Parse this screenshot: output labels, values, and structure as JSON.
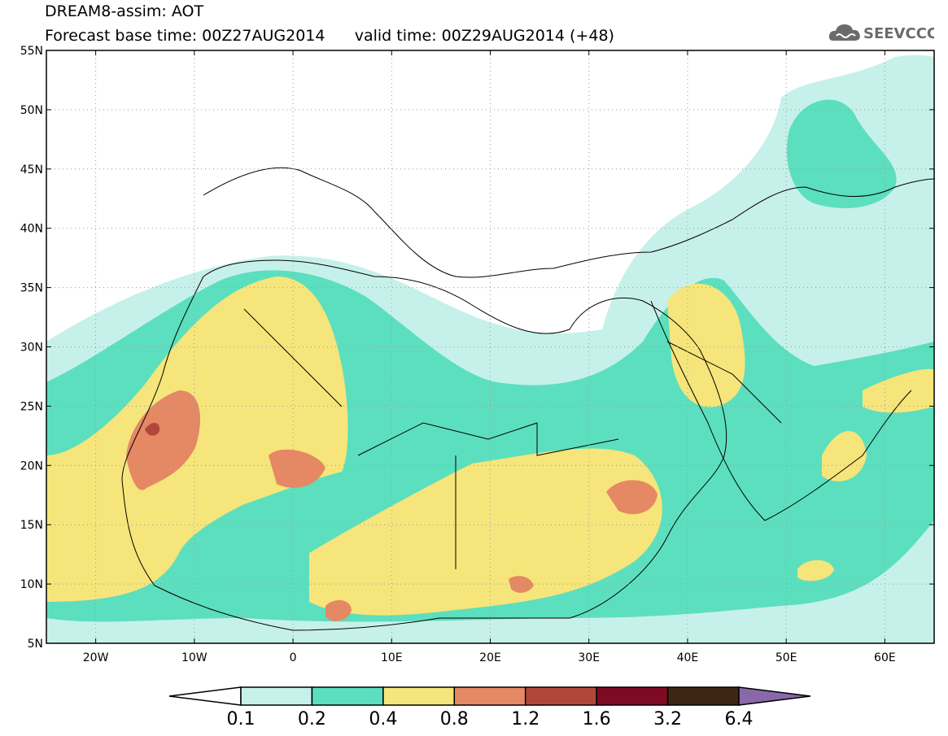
{
  "header": {
    "title_line1": "DREAM8-assim: AOT",
    "title_line2": "Forecast base time: 00Z27AUG2014      valid time: 00Z29AUG2014 (+48)"
  },
  "logo": {
    "text": "SEEVCCC",
    "icon": "cloud-icon"
  },
  "map": {
    "variable": "AOT",
    "lon_range": [
      -25,
      65
    ],
    "lat_range": [
      5,
      55
    ],
    "gridlines": true,
    "lat_labels": [
      "55N",
      "50N",
      "45N",
      "40N",
      "35N",
      "30N",
      "25N",
      "20N",
      "15N",
      "10N",
      "5N"
    ],
    "lat_values": [
      55,
      50,
      45,
      40,
      35,
      30,
      25,
      20,
      15,
      10,
      5
    ],
    "lon_labels": [
      "20W",
      "10W",
      "0",
      "10E",
      "20E",
      "30E",
      "40E",
      "50E",
      "60E"
    ],
    "lon_values": [
      -20,
      -10,
      0,
      10,
      20,
      30,
      40,
      50,
      60
    ]
  },
  "colorbar": {
    "levels": [
      "0.1",
      "0.2",
      "0.4",
      "0.8",
      "1.2",
      "1.6",
      "3.2",
      "6.4"
    ],
    "colors": [
      "#c6f1ea",
      "#5cdfbe",
      "#f6e57a",
      "#e58864",
      "#b0483a",
      "#7f0a23",
      "#3d2614",
      "#8a68a8"
    ],
    "below_color": "#ffffff"
  }
}
